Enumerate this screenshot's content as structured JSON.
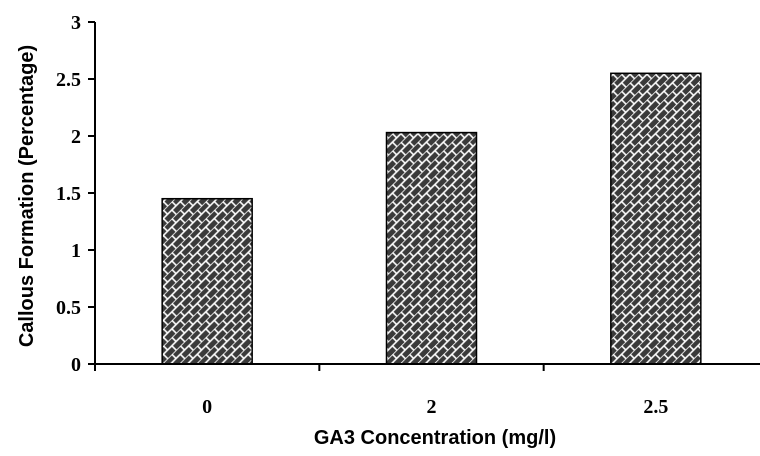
{
  "chart_data": {
    "type": "bar",
    "title": "",
    "xlabel": "GA3 Concentration (mg/l)",
    "ylabel": "Callous Formation (Percentage)",
    "categories": [
      "0",
      "2",
      "2.5"
    ],
    "values": [
      1.45,
      2.03,
      2.55
    ],
    "ylim": [
      0,
      3
    ],
    "yticks": [
      "0",
      "0.5",
      "1",
      "1.5",
      "2",
      "2.5",
      "3"
    ],
    "grid": false,
    "legend": "none",
    "bar_fill": "hatched brick pattern",
    "colors": {
      "bar_dark": "#3a3a3a",
      "bar_hatch": "#ffffff",
      "axis": "#000000"
    }
  }
}
